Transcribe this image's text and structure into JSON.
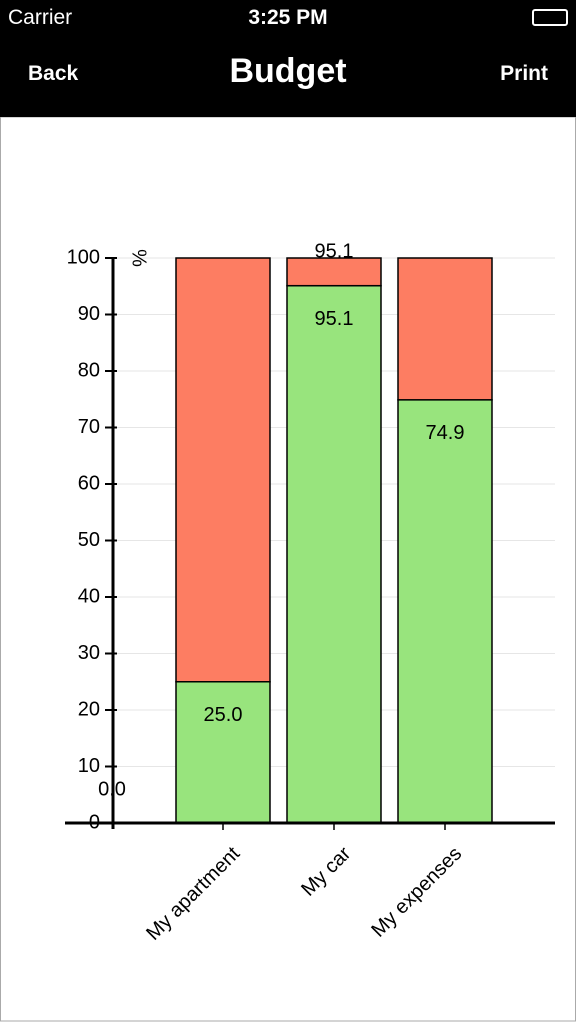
{
  "status_bar": {
    "carrier": "Carrier",
    "time": "3:25 PM"
  },
  "nav_bar": {
    "back": "Back",
    "title": "Budget",
    "action": "Print"
  },
  "chart_data": {
    "type": "bar",
    "stacked": true,
    "y_label": "%",
    "categories": [
      "My apartment",
      "My car",
      "My expenses"
    ],
    "series": [
      {
        "color": "#98e47d",
        "values": [
          25.0,
          95.1,
          74.9
        ],
        "value_labels": [
          "25.0",
          "95.1",
          "74.9"
        ]
      },
      {
        "color": "#fd7d62",
        "values": [
          75.0,
          4.9,
          25.1
        ]
      }
    ],
    "annotations": [
      "0.0",
      "95.1"
    ],
    "ylim": [
      0,
      100
    ],
    "yticks": [
      0,
      10,
      20,
      30,
      40,
      50,
      60,
      70,
      80,
      90,
      100
    ],
    "grid": true
  }
}
